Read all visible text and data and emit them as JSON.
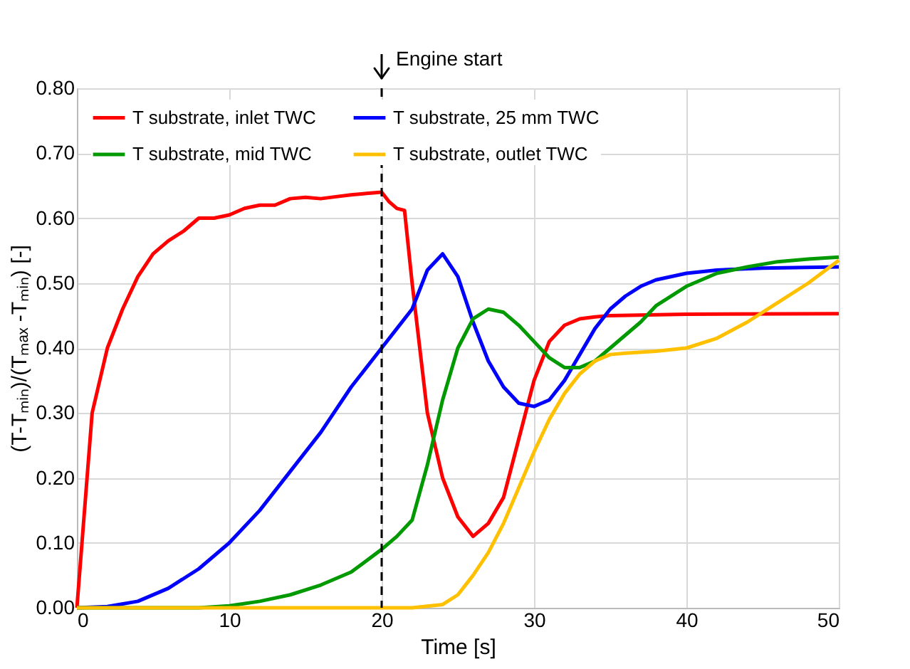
{
  "chart_data": {
    "type": "line",
    "xlabel": "Time [s]",
    "ylabel": "(T-Tₘᵢₙ)/(Tₘₐₓ -Tₘᵢₙ) [-]",
    "xlim": [
      0,
      50
    ],
    "xticks": [
      0,
      10,
      20,
      30,
      40,
      50
    ],
    "ylim": [
      0,
      0.8
    ],
    "yticks": [
      {
        "value": 0,
        "label": "0.00"
      },
      {
        "value": 0.1,
        "label": "0.10"
      },
      {
        "value": 0.2,
        "label": "0.20"
      },
      {
        "value": 0.3,
        "label": "0.30"
      },
      {
        "value": 0.4,
        "label": "0.40"
      },
      {
        "value": 0.5,
        "label": "0.50"
      },
      {
        "value": 0.6,
        "label": "0.60"
      },
      {
        "value": 0.7,
        "label": "0.70"
      },
      {
        "value": 0.8,
        "label": "0.80"
      }
    ],
    "grid": true,
    "legend": "top",
    "marker": "none",
    "line_style": "solid",
    "ref_lines": [
      {
        "axis": "x",
        "value": 20,
        "label": "Engine start",
        "color": "#000000",
        "line_style": "dashed"
      }
    ],
    "series": [
      {
        "name": "T substrate, inlet TWC",
        "color": "#ff0000",
        "x": [
          0,
          0.5,
          1,
          2,
          3,
          4,
          5,
          6,
          7,
          8,
          9,
          10,
          11,
          12,
          13,
          14,
          15,
          16,
          17,
          18,
          19,
          20,
          20.5,
          21,
          21.5,
          22,
          23,
          24,
          25,
          26,
          27,
          28,
          29,
          30,
          31,
          32,
          33,
          34,
          35,
          40,
          50
        ],
        "values": [
          0,
          0.15,
          0.3,
          0.4,
          0.46,
          0.51,
          0.545,
          0.565,
          0.58,
          0.6,
          0.6,
          0.605,
          0.615,
          0.62,
          0.62,
          0.63,
          0.632,
          0.63,
          0.633,
          0.636,
          0.638,
          0.64,
          0.625,
          0.615,
          0.612,
          0.5,
          0.3,
          0.2,
          0.14,
          0.11,
          0.13,
          0.17,
          0.26,
          0.35,
          0.41,
          0.435,
          0.445,
          0.448,
          0.45,
          0.452,
          0.453
        ]
      },
      {
        "name": "T substrate, 25 mm TWC",
        "color": "#0000ff",
        "x": [
          0,
          2,
          4,
          6,
          8,
          10,
          12,
          14,
          16,
          18,
          20,
          21,
          22,
          23,
          24,
          25,
          26,
          27,
          28,
          29,
          30,
          31,
          32,
          33,
          34,
          35,
          36,
          37,
          38,
          40,
          42,
          45,
          50
        ],
        "values": [
          0,
          0.002,
          0.01,
          0.03,
          0.06,
          0.1,
          0.15,
          0.21,
          0.27,
          0.34,
          0.4,
          0.43,
          0.46,
          0.52,
          0.545,
          0.51,
          0.44,
          0.38,
          0.34,
          0.315,
          0.31,
          0.32,
          0.35,
          0.39,
          0.43,
          0.46,
          0.48,
          0.495,
          0.505,
          0.515,
          0.52,
          0.523,
          0.525
        ]
      },
      {
        "name": "T substrate, mid TWC",
        "color": "#009900",
        "x": [
          0,
          8,
          10,
          12,
          14,
          16,
          18,
          20,
          21,
          22,
          23,
          24,
          25,
          26,
          27,
          28,
          29,
          30,
          31,
          32,
          33,
          34,
          35,
          36,
          37,
          38,
          40,
          42,
          44,
          46,
          48,
          50
        ],
        "values": [
          0,
          0,
          0.003,
          0.01,
          0.02,
          0.035,
          0.055,
          0.09,
          0.11,
          0.135,
          0.22,
          0.32,
          0.4,
          0.445,
          0.46,
          0.455,
          0.435,
          0.41,
          0.385,
          0.37,
          0.37,
          0.38,
          0.4,
          0.42,
          0.44,
          0.465,
          0.495,
          0.515,
          0.525,
          0.533,
          0.537,
          0.54
        ]
      },
      {
        "name": "T substrate, outlet TWC",
        "color": "#ffc000",
        "x": [
          0,
          22,
          24,
          25,
          26,
          27,
          28,
          29,
          30,
          31,
          32,
          33,
          34,
          35,
          36,
          38,
          40,
          42,
          44,
          46,
          48,
          50
        ],
        "values": [
          0,
          0,
          0.005,
          0.02,
          0.05,
          0.085,
          0.13,
          0.185,
          0.24,
          0.29,
          0.33,
          0.36,
          0.38,
          0.39,
          0.392,
          0.395,
          0.4,
          0.415,
          0.44,
          0.47,
          0.5,
          0.535
        ]
      }
    ]
  }
}
